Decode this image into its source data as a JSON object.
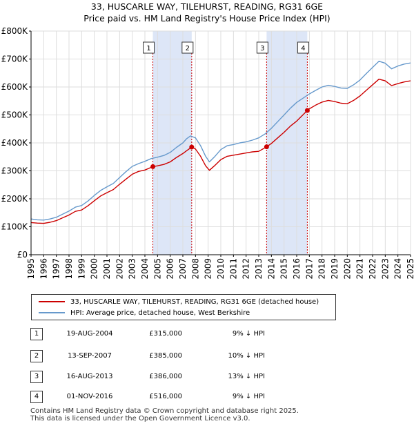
{
  "title_line1": "33, HUSCARLE WAY, TILEHURST, READING, RG31 6GE",
  "title_line2": "Price paid vs. HM Land Registry's House Price Index (HPI)",
  "colors": {
    "property": "#cc0000",
    "hpi": "#6699cc",
    "shade": "#dde6f7",
    "grid": "#dddddd",
    "marker_line": "#cc0000"
  },
  "chart_data": {
    "type": "line",
    "title": "33, HUSCARLE WAY, TILEHURST, READING, RG31 6GE",
    "subtitle": "Price paid vs. HM Land Registry's House Price Index (HPI)",
    "xlim": [
      1995,
      2025
    ],
    "ylim": [
      0,
      800000
    ],
    "xticks": [
      1995,
      1996,
      1997,
      1998,
      1999,
      2000,
      2001,
      2002,
      2003,
      2004,
      2005,
      2006,
      2007,
      2008,
      2009,
      2010,
      2011,
      2012,
      2013,
      2014,
      2015,
      2016,
      2017,
      2018,
      2019,
      2020,
      2021,
      2022,
      2023,
      2024,
      2025
    ],
    "yticks": [
      {
        "value": 0,
        "label": "£0"
      },
      {
        "value": 100000,
        "label": "£100K"
      },
      {
        "value": 200000,
        "label": "£200K"
      },
      {
        "value": 300000,
        "label": "£300K"
      },
      {
        "value": 400000,
        "label": "£400K"
      },
      {
        "value": 500000,
        "label": "£500K"
      },
      {
        "value": 600000,
        "label": "£600K"
      },
      {
        "value": 700000,
        "label": "£700K"
      },
      {
        "value": 800000,
        "label": "£800K"
      }
    ],
    "shaded_periods": [
      [
        2004.63,
        2007.7
      ],
      [
        2013.62,
        2016.84
      ]
    ],
    "sales": [
      {
        "label": "1",
        "x": 2004.63,
        "y": 315000
      },
      {
        "label": "2",
        "x": 2007.7,
        "y": 385000
      },
      {
        "label": "3",
        "x": 2013.62,
        "y": 386000
      },
      {
        "label": "4",
        "x": 2016.84,
        "y": 516000
      }
    ],
    "series": [
      {
        "name": "33, HUSCARLE WAY, TILEHURST, READING, RG31 6GE (detached house)",
        "color": "#cc0000",
        "points": [
          [
            1995,
            115000
          ],
          [
            1995.5,
            113000
          ],
          [
            1996,
            112000
          ],
          [
            1996.5,
            116000
          ],
          [
            1997,
            122000
          ],
          [
            1997.5,
            132000
          ],
          [
            1998,
            142000
          ],
          [
            1998.5,
            155000
          ],
          [
            1999,
            160000
          ],
          [
            1999.5,
            175000
          ],
          [
            2000,
            193000
          ],
          [
            2000.5,
            210000
          ],
          [
            2001,
            222000
          ],
          [
            2001.5,
            233000
          ],
          [
            2002,
            252000
          ],
          [
            2002.5,
            270000
          ],
          [
            2003,
            288000
          ],
          [
            2003.5,
            298000
          ],
          [
            2004,
            303000
          ],
          [
            2004.63,
            315000
          ],
          [
            2005,
            318000
          ],
          [
            2005.5,
            323000
          ],
          [
            2006,
            332000
          ],
          [
            2006.5,
            348000
          ],
          [
            2007,
            362000
          ],
          [
            2007.3,
            372000
          ],
          [
            2007.7,
            385000
          ],
          [
            2008,
            378000
          ],
          [
            2008.4,
            352000
          ],
          [
            2008.8,
            318000
          ],
          [
            2009.1,
            302000
          ],
          [
            2009.5,
            318000
          ],
          [
            2010,
            340000
          ],
          [
            2010.5,
            352000
          ],
          [
            2011,
            356000
          ],
          [
            2011.5,
            360000
          ],
          [
            2012,
            364000
          ],
          [
            2012.5,
            368000
          ],
          [
            2013,
            370000
          ],
          [
            2013.62,
            386000
          ],
          [
            2014,
            398000
          ],
          [
            2014.5,
            418000
          ],
          [
            2015,
            438000
          ],
          [
            2015.5,
            460000
          ],
          [
            2016,
            478000
          ],
          [
            2016.84,
            516000
          ],
          [
            2017,
            522000
          ],
          [
            2017.5,
            535000
          ],
          [
            2018,
            546000
          ],
          [
            2018.5,
            552000
          ],
          [
            2019,
            548000
          ],
          [
            2019.5,
            542000
          ],
          [
            2020,
            540000
          ],
          [
            2020.5,
            552000
          ],
          [
            2021,
            568000
          ],
          [
            2021.5,
            588000
          ],
          [
            2022,
            608000
          ],
          [
            2022.5,
            628000
          ],
          [
            2023,
            622000
          ],
          [
            2023.5,
            605000
          ],
          [
            2024,
            612000
          ],
          [
            2024.5,
            618000
          ],
          [
            2025,
            622000
          ]
        ]
      },
      {
        "name": "HPI: Average price, detached house, West Berkshire",
        "color": "#6699cc",
        "points": [
          [
            1995,
            128000
          ],
          [
            1995.5,
            125000
          ],
          [
            1996,
            124000
          ],
          [
            1996.5,
            128000
          ],
          [
            1997,
            134000
          ],
          [
            1997.5,
            145000
          ],
          [
            1998,
            156000
          ],
          [
            1998.5,
            170000
          ],
          [
            1999,
            176000
          ],
          [
            1999.5,
            192000
          ],
          [
            2000,
            212000
          ],
          [
            2000.5,
            230000
          ],
          [
            2001,
            243000
          ],
          [
            2001.5,
            255000
          ],
          [
            2002,
            276000
          ],
          [
            2002.5,
            297000
          ],
          [
            2003,
            316000
          ],
          [
            2003.5,
            326000
          ],
          [
            2004,
            334000
          ],
          [
            2004.5,
            344000
          ],
          [
            2005,
            349000
          ],
          [
            2005.5,
            355000
          ],
          [
            2006,
            366000
          ],
          [
            2006.5,
            384000
          ],
          [
            2007,
            400000
          ],
          [
            2007.3,
            415000
          ],
          [
            2007.6,
            425000
          ],
          [
            2008,
            418000
          ],
          [
            2008.4,
            390000
          ],
          [
            2008.8,
            352000
          ],
          [
            2009.1,
            332000
          ],
          [
            2009.5,
            350000
          ],
          [
            2010,
            376000
          ],
          [
            2010.5,
            390000
          ],
          [
            2011,
            394000
          ],
          [
            2011.5,
            400000
          ],
          [
            2012,
            404000
          ],
          [
            2012.5,
            410000
          ],
          [
            2013,
            418000
          ],
          [
            2013.5,
            432000
          ],
          [
            2014,
            452000
          ],
          [
            2014.5,
            476000
          ],
          [
            2015,
            500000
          ],
          [
            2015.5,
            524000
          ],
          [
            2016,
            545000
          ],
          [
            2016.5,
            560000
          ],
          [
            2017,
            575000
          ],
          [
            2017.5,
            588000
          ],
          [
            2018,
            600000
          ],
          [
            2018.5,
            606000
          ],
          [
            2019,
            602000
          ],
          [
            2019.5,
            596000
          ],
          [
            2020,
            595000
          ],
          [
            2020.5,
            608000
          ],
          [
            2021,
            625000
          ],
          [
            2021.5,
            648000
          ],
          [
            2022,
            670000
          ],
          [
            2022.5,
            692000
          ],
          [
            2023,
            685000
          ],
          [
            2023.5,
            665000
          ],
          [
            2024,
            675000
          ],
          [
            2024.5,
            682000
          ],
          [
            2025,
            686000
          ]
        ]
      }
    ]
  },
  "legend": {
    "property_label": "33, HUSCARLE WAY, TILEHURST, READING, RG31 6GE (detached house)",
    "hpi_label": "HPI: Average price, detached house, West Berkshire"
  },
  "sales_table": [
    {
      "num": "1",
      "date": "19-AUG-2004",
      "price": "£315,000",
      "hpi": "9% ↓ HPI"
    },
    {
      "num": "2",
      "date": "13-SEP-2007",
      "price": "£385,000",
      "hpi": "10% ↓ HPI"
    },
    {
      "num": "3",
      "date": "16-AUG-2013",
      "price": "£386,000",
      "hpi": "13% ↓ HPI"
    },
    {
      "num": "4",
      "date": "01-NOV-2016",
      "price": "£516,000",
      "hpi": "9% ↓ HPI"
    }
  ],
  "footer_line1": "Contains HM Land Registry data © Crown copyright and database right 2025.",
  "footer_line2": "This data is licensed under the Open Government Licence v3.0."
}
